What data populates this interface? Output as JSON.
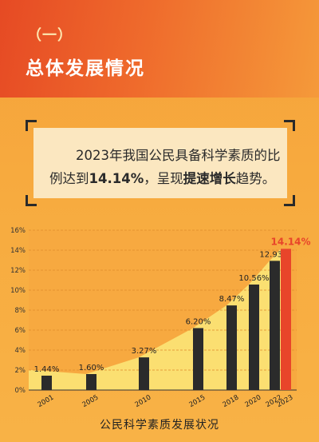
{
  "header": {
    "section_no": "（一）",
    "title": "总体发展情况"
  },
  "quote": {
    "part1": "2023年我国公民具备科学素质的比例达到",
    "highlight_value": "14.14%",
    "part2": "，呈现",
    "highlight_phrase": "提速增长",
    "part3": "趋势。"
  },
  "colors": {
    "bar": "#2b2b2b",
    "highlight_bar": "#e8452a",
    "highlight_label": "#e8452a",
    "trend_area": "#fbe97a"
  },
  "chart_data": {
    "type": "bar",
    "title": "公民科学素质发展状况",
    "categories": [
      "2001",
      "2005",
      "2010",
      "2015",
      "2018",
      "2020",
      "2022",
      "2023"
    ],
    "values": [
      1.44,
      1.6,
      3.27,
      6.2,
      8.47,
      10.56,
      12.93,
      14.14
    ],
    "value_labels": [
      "1.44%",
      "1.60%",
      "3.27%",
      "6.20%",
      "8.47%",
      "10.56%",
      "12.93%",
      "14.14%"
    ],
    "highlight_index": 7,
    "ylim": [
      0,
      16
    ],
    "yticks": [
      "0%",
      "2%",
      "4%",
      "6%",
      "8%",
      "10%",
      "12%",
      "14%",
      "16%"
    ],
    "grid": true,
    "xlabel": "",
    "ylabel": ""
  }
}
